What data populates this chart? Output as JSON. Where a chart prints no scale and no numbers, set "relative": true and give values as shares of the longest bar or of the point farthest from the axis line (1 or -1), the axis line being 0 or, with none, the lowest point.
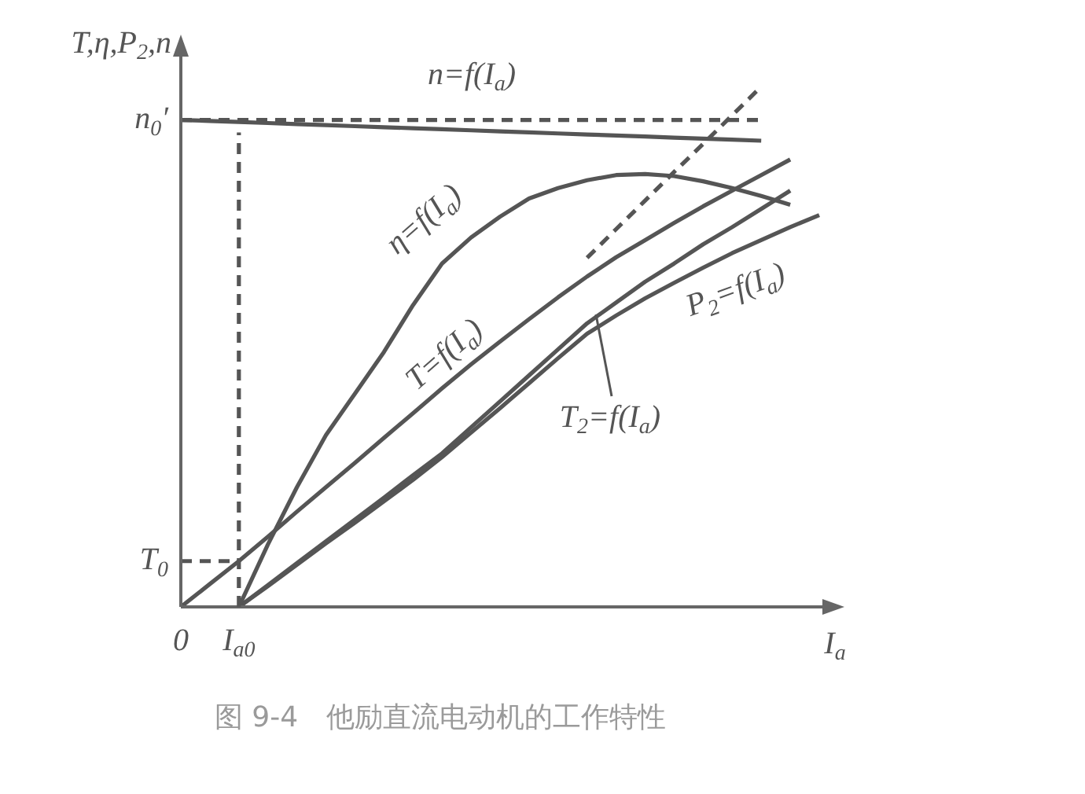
{
  "chart_data": {
    "type": "line",
    "relative": true,
    "title": "图 9-4　他励直流电动机的工作特性",
    "ylabel": "T,η,P$_{2}$,n",
    "xlabel": "I$_{a}$",
    "legend": false,
    "marker": "none",
    "line_style": "solid",
    "categories": [
      "0",
      null,
      "I$_{a0}$",
      null,
      null,
      null,
      null,
      null,
      null,
      null,
      null,
      null,
      null,
      null,
      null,
      null,
      null,
      null,
      null,
      null,
      null,
      null,
      null
    ],
    "series": [
      {
        "color": "#555555",
        "values": [
          0.936,
          0.934,
          0.932,
          0.93,
          0.928,
          0.926,
          0.924,
          0.922,
          0.92,
          0.918,
          0.916,
          0.914,
          0.912,
          0.91,
          0.908,
          0.906,
          0.904,
          0.902,
          0.9,
          0.898,
          0.896,
          null,
          null
        ]
      },
      {
        "color": "#555555",
        "values": [
          null,
          null,
          0,
          0.12,
          0.23,
          0.33,
          0.41,
          0.49,
          0.58,
          0.66,
          0.71,
          0.75,
          0.785,
          0.805,
          0.82,
          0.83,
          0.832,
          0.828,
          0.818,
          0.805,
          0.79,
          0.773,
          null
        ]
      },
      {
        "color": "#555555",
        "values": [
          0,
          0.044,
          0.088,
          0.135,
          0.183,
          0.23,
          0.277,
          0.325,
          0.372,
          0.42,
          0.466,
          0.51,
          0.553,
          0.595,
          0.635,
          0.672,
          0.705,
          0.738,
          0.77,
          0.8,
          0.83,
          0.86,
          null
        ]
      },
      {
        "color": "#555555",
        "values": [
          null,
          null,
          0,
          0.042,
          0.084,
          0.126,
          0.168,
          0.21,
          0.253,
          0.295,
          0.345,
          0.395,
          0.445,
          0.495,
          0.545,
          0.585,
          0.625,
          0.66,
          0.697,
          0.73,
          0.765,
          0.8,
          null
        ]
      },
      {
        "color": "#555555",
        "values": [
          null,
          null,
          0,
          0.04,
          0.081,
          0.122,
          0.162,
          0.203,
          0.244,
          0.288,
          0.335,
          0.382,
          0.43,
          0.478,
          0.525,
          0.56,
          0.593,
          0.623,
          0.652,
          0.68,
          0.705,
          0.73,
          0.753
        ]
      },
      {
        "color": "#555555",
        "line_style": "dashed",
        "values": [
          null,
          null,
          null,
          null,
          null,
          null,
          null,
          null,
          null,
          null,
          null,
          null,
          null,
          null,
          0.671,
          0.726,
          0.781,
          0.836,
          0.89,
          0.945,
          1,
          null,
          null
        ]
      },
      {
        "color": "#555555",
        "line_style": "dashed",
        "values": [
          0.936,
          0.936,
          0.936,
          0.936,
          0.936,
          0.936,
          0.936,
          0.936,
          0.936,
          0.936,
          0.936,
          0.936,
          0.936,
          0.936,
          0.936,
          0.936,
          0.936,
          0.936,
          0.936,
          0.936,
          0.936,
          null,
          null
        ]
      },
      {
        "color": "#555555",
        "line_style": "dashed",
        "values": [
          0.088,
          0.088,
          0.088,
          null,
          null,
          null,
          null,
          null,
          null,
          null,
          null,
          null,
          null,
          null,
          null,
          null,
          null,
          null,
          null,
          null,
          null,
          null,
          null
        ]
      }
    ],
    "ref_lines": [
      {
        "axis": "x",
        "value": "I$_{a0}$",
        "color": "#555555",
        "line_style": "dashed"
      }
    ],
    "annotations": [
      "n=f(I$_{a}$)",
      "η=f(I$_{a}$)",
      "T=f(I$_{a}$)",
      "P$_{2}$=f(I$_{a}$)",
      "T$_{2}$=f(I$_{a}$)",
      {
        "text": "T$_{0}$",
        "x": "0",
        "y": 0.088
      },
      {
        "text": "n$_{0}$′",
        "x": "0",
        "y": 0.936
      }
    ]
  }
}
